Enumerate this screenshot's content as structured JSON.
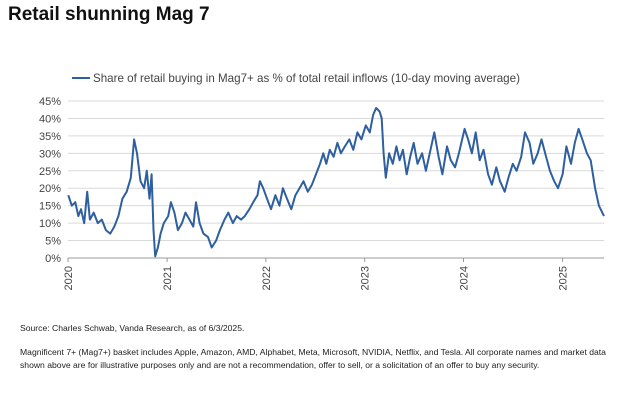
{
  "title": "Retail shunning Mag 7",
  "source": "Source: Charles Schwab, Vanda Research, as of 6/3/2025.",
  "disclaimer": "Magnificent 7+ (Mag7+) basket includes Apple, Amazon, AMD, Alphabet, Meta, Microsoft, NVIDIA, Netflix, and Tesla. All corporate names and market data shown above are for illustrative purposes only and are not a recommendation, offer to sell, or a solicitation of an offer to buy any security.",
  "colors": {
    "series": "#2e5f9e",
    "grid": "#d9d9d9"
  },
  "chart_data": {
    "type": "line",
    "xlabel": "",
    "ylabel": "",
    "ylim": [
      0,
      45
    ],
    "xlim": [
      "2020-01-01",
      "2025-06-03"
    ],
    "grid": "horizontal",
    "legend": "top",
    "y_ticks": [
      "0%",
      "5%",
      "10%",
      "15%",
      "20%",
      "25%",
      "30%",
      "35%",
      "40%",
      "45%"
    ],
    "x_ticks": [
      "2020",
      "2021",
      "2022",
      "2023",
      "2024",
      "2025"
    ],
    "series": [
      {
        "name": "Share of retail buying in Mag7+ as % of total retail inflows (10-day moving average)",
        "points": [
          [
            "2020-01-02",
            18
          ],
          [
            "2020-01-15",
            15
          ],
          [
            "2020-01-28",
            16
          ],
          [
            "2020-02-08",
            12
          ],
          [
            "2020-02-18",
            14
          ],
          [
            "2020-03-01",
            10
          ],
          [
            "2020-03-12",
            19
          ],
          [
            "2020-03-22",
            11
          ],
          [
            "2020-04-05",
            13
          ],
          [
            "2020-04-20",
            10
          ],
          [
            "2020-05-05",
            11
          ],
          [
            "2020-05-20",
            8
          ],
          [
            "2020-06-05",
            7
          ],
          [
            "2020-06-20",
            9
          ],
          [
            "2020-07-05",
            12
          ],
          [
            "2020-07-20",
            17
          ],
          [
            "2020-08-05",
            19
          ],
          [
            "2020-08-20",
            23
          ],
          [
            "2020-09-01",
            34
          ],
          [
            "2020-09-12",
            30
          ],
          [
            "2020-09-25",
            22
          ],
          [
            "2020-10-08",
            20
          ],
          [
            "2020-10-18",
            25
          ],
          [
            "2020-10-28",
            17
          ],
          [
            "2020-11-05",
            24
          ],
          [
            "2020-11-12",
            8
          ],
          [
            "2020-11-18",
            0.5
          ],
          [
            "2020-11-28",
            3
          ],
          [
            "2020-12-08",
            7
          ],
          [
            "2020-12-20",
            10
          ],
          [
            "2021-01-05",
            12
          ],
          [
            "2021-01-15",
            16
          ],
          [
            "2021-01-28",
            13
          ],
          [
            "2021-02-10",
            8
          ],
          [
            "2021-02-25",
            10
          ],
          [
            "2021-03-10",
            13
          ],
          [
            "2021-03-25",
            11
          ],
          [
            "2021-04-08",
            9
          ],
          [
            "2021-04-18",
            16
          ],
          [
            "2021-05-01",
            10
          ],
          [
            "2021-05-15",
            7
          ],
          [
            "2021-06-01",
            6
          ],
          [
            "2021-06-15",
            3
          ],
          [
            "2021-07-01",
            5
          ],
          [
            "2021-07-15",
            8
          ],
          [
            "2021-08-01",
            11
          ],
          [
            "2021-08-15",
            13
          ],
          [
            "2021-09-01",
            10
          ],
          [
            "2021-09-15",
            12
          ],
          [
            "2021-10-01",
            11
          ],
          [
            "2021-10-15",
            12
          ],
          [
            "2021-11-01",
            14
          ],
          [
            "2021-11-15",
            16
          ],
          [
            "2021-12-01",
            18
          ],
          [
            "2021-12-10",
            22
          ],
          [
            "2021-12-22",
            20
          ],
          [
            "2022-01-05",
            17
          ],
          [
            "2022-01-20",
            14
          ],
          [
            "2022-02-05",
            18
          ],
          [
            "2022-02-20",
            15
          ],
          [
            "2022-03-05",
            20
          ],
          [
            "2022-03-20",
            17
          ],
          [
            "2022-04-05",
            14
          ],
          [
            "2022-04-20",
            18
          ],
          [
            "2022-05-05",
            20
          ],
          [
            "2022-05-20",
            22
          ],
          [
            "2022-06-05",
            19
          ],
          [
            "2022-06-20",
            21
          ],
          [
            "2022-07-05",
            24
          ],
          [
            "2022-07-20",
            27
          ],
          [
            "2022-08-01",
            30
          ],
          [
            "2022-08-12",
            27
          ],
          [
            "2022-08-25",
            31
          ],
          [
            "2022-09-08",
            29
          ],
          [
            "2022-09-22",
            33
          ],
          [
            "2022-10-05",
            30
          ],
          [
            "2022-10-20",
            32
          ],
          [
            "2022-11-05",
            34
          ],
          [
            "2022-11-20",
            31
          ],
          [
            "2022-12-05",
            36
          ],
          [
            "2022-12-20",
            34
          ],
          [
            "2023-01-05",
            38
          ],
          [
            "2023-01-20",
            36
          ],
          [
            "2023-02-01",
            41
          ],
          [
            "2023-02-12",
            43
          ],
          [
            "2023-02-25",
            42
          ],
          [
            "2023-03-05",
            40
          ],
          [
            "2023-03-12",
            30
          ],
          [
            "2023-03-20",
            23
          ],
          [
            "2023-04-01",
            30
          ],
          [
            "2023-04-15",
            27
          ],
          [
            "2023-04-28",
            32
          ],
          [
            "2023-05-10",
            28
          ],
          [
            "2023-05-22",
            31
          ],
          [
            "2023-06-05",
            24
          ],
          [
            "2023-06-18",
            29
          ],
          [
            "2023-07-01",
            33
          ],
          [
            "2023-07-15",
            27
          ],
          [
            "2023-08-01",
            30
          ],
          [
            "2023-08-15",
            25
          ],
          [
            "2023-09-01",
            31
          ],
          [
            "2023-09-15",
            36
          ],
          [
            "2023-10-01",
            29
          ],
          [
            "2023-10-15",
            24
          ],
          [
            "2023-11-01",
            32
          ],
          [
            "2023-11-15",
            28
          ],
          [
            "2023-12-01",
            26
          ],
          [
            "2023-12-15",
            30
          ],
          [
            "2024-01-05",
            37
          ],
          [
            "2024-01-18",
            34
          ],
          [
            "2024-02-01",
            30
          ],
          [
            "2024-02-15",
            36
          ],
          [
            "2024-03-01",
            28
          ],
          [
            "2024-03-15",
            31
          ],
          [
            "2024-04-01",
            24
          ],
          [
            "2024-04-15",
            21
          ],
          [
            "2024-05-01",
            26
          ],
          [
            "2024-05-15",
            22
          ],
          [
            "2024-06-01",
            19
          ],
          [
            "2024-06-15",
            23
          ],
          [
            "2024-07-01",
            27
          ],
          [
            "2024-07-15",
            25
          ],
          [
            "2024-08-01",
            29
          ],
          [
            "2024-08-15",
            36
          ],
          [
            "2024-09-01",
            33
          ],
          [
            "2024-09-15",
            27
          ],
          [
            "2024-10-01",
            30
          ],
          [
            "2024-10-15",
            34
          ],
          [
            "2024-11-01",
            29
          ],
          [
            "2024-11-15",
            25
          ],
          [
            "2024-12-01",
            22
          ],
          [
            "2024-12-15",
            20
          ],
          [
            "2025-01-01",
            24
          ],
          [
            "2025-01-15",
            32
          ],
          [
            "2025-02-01",
            27
          ],
          [
            "2025-02-15",
            33
          ],
          [
            "2025-03-01",
            37
          ],
          [
            "2025-03-15",
            34
          ],
          [
            "2025-04-01",
            30
          ],
          [
            "2025-04-15",
            28
          ],
          [
            "2025-05-01",
            20
          ],
          [
            "2025-05-15",
            15
          ],
          [
            "2025-06-03",
            12
          ]
        ]
      }
    ]
  }
}
